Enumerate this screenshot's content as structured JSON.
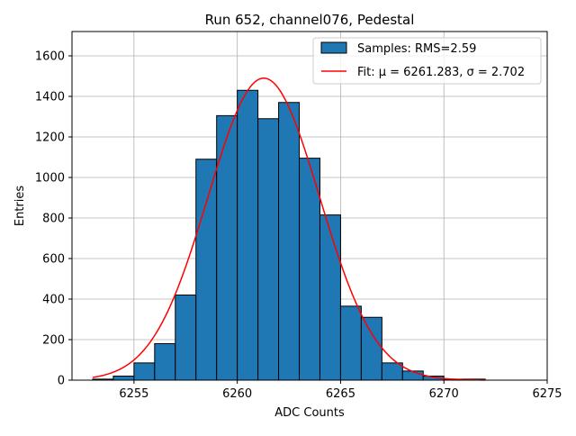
{
  "chart_data": {
    "type": "bar",
    "title": "Run 652, channel076, Pedestal",
    "xlabel": "ADC Counts",
    "ylabel": "Entries",
    "xlim": [
      6252.0,
      6275.0
    ],
    "ylim": [
      0,
      1720
    ],
    "xticks": [
      6255,
      6260,
      6265,
      6270,
      6275
    ],
    "yticks": [
      0,
      200,
      400,
      600,
      800,
      1000,
      1200,
      1400,
      1600
    ],
    "grid": true,
    "legend_placement": "top-right",
    "bin_edges": [
      6253,
      6254,
      6255,
      6256,
      6257,
      6258,
      6259,
      6260,
      6261,
      6262,
      6263,
      6264,
      6265,
      6266,
      6267,
      6268,
      6269,
      6270,
      6271,
      6272
    ],
    "counts": [
      5,
      20,
      85,
      180,
      420,
      1090,
      1305,
      1430,
      1290,
      1370,
      1095,
      815,
      365,
      310,
      85,
      45,
      20,
      5,
      5
    ],
    "fit": {
      "mu": 6261.283,
      "sigma": 2.702,
      "amplitude": 1490,
      "x_range": [
        6253,
        6272
      ]
    },
    "legend": [
      {
        "label": "Samples: RMS=2.59",
        "kind": "patch",
        "color": "#1f77b4"
      },
      {
        "label": "Fit: μ = 6261.283, σ = 2.702",
        "kind": "line",
        "color": "#ff0000"
      }
    ],
    "colors": {
      "bar_fill": "#1f77b4",
      "bar_edge": "#000000",
      "fit_line": "#ff0000",
      "grid": "#b0b0b0"
    }
  }
}
